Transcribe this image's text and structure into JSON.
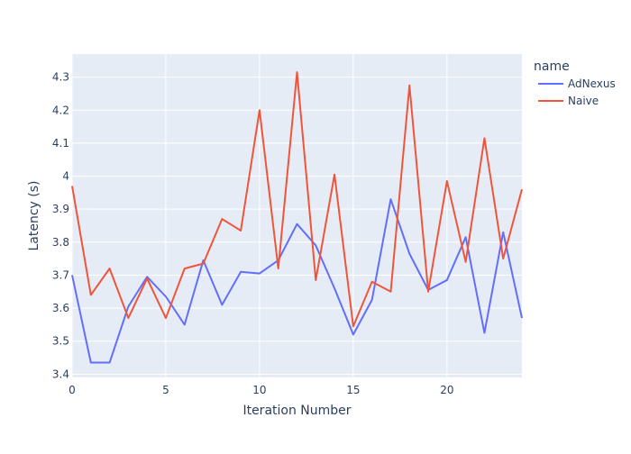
{
  "chart_data": {
    "type": "line",
    "title": "",
    "xlabel": "Iteration Number",
    "ylabel": "Latency (s)",
    "xlim": [
      0,
      24
    ],
    "ylim": [
      3.39,
      4.37
    ],
    "x_ticks": [
      0,
      5,
      10,
      15,
      20
    ],
    "y_ticks": [
      3.4,
      3.5,
      3.6,
      3.7,
      3.8,
      3.9,
      4,
      4.1,
      4.2,
      4.3
    ],
    "grid": true,
    "legend": {
      "title": "name",
      "placement": "right"
    },
    "x": [
      0,
      1,
      2,
      3,
      4,
      5,
      6,
      7,
      8,
      9,
      10,
      11,
      12,
      13,
      14,
      15,
      16,
      17,
      18,
      19,
      20,
      21,
      22,
      23,
      24
    ],
    "series": [
      {
        "name": "AdNexus",
        "color": "#636efa",
        "values": [
          3.7,
          3.435,
          3.435,
          3.605,
          3.695,
          3.635,
          3.55,
          3.745,
          3.61,
          3.71,
          3.705,
          3.745,
          3.855,
          3.79,
          3.66,
          3.52,
          3.625,
          3.93,
          3.765,
          3.655,
          3.685,
          3.815,
          3.525,
          3.83,
          3.57
        ]
      },
      {
        "name": "Naive",
        "color": "#ef553b",
        "values": [
          3.97,
          3.64,
          3.72,
          3.57,
          3.69,
          3.57,
          3.72,
          3.735,
          3.87,
          3.835,
          4.2,
          3.72,
          4.315,
          3.685,
          4.005,
          3.545,
          3.68,
          3.65,
          4.275,
          3.65,
          3.985,
          3.74,
          4.115,
          3.75,
          3.96
        ]
      }
    ]
  },
  "colors": {
    "plot_background": "#e5ecf6",
    "grid": "#ffffff",
    "text": "#2a3f5f"
  }
}
